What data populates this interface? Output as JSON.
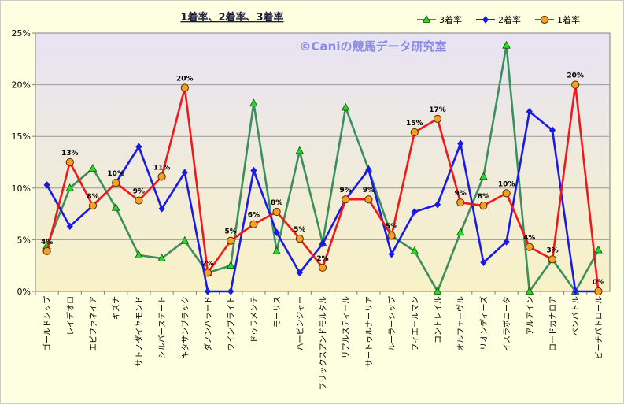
{
  "chart_data": {
    "type": "line",
    "title": "1着率、2着率、3着率",
    "watermark": "©Caniの競馬データ研究室",
    "ylim": [
      0,
      25
    ],
    "yticks": [
      "0%",
      "5%",
      "10%",
      "15%",
      "20%",
      "25%"
    ],
    "ytick_values": [
      0,
      5,
      10,
      15,
      20,
      25
    ],
    "grid": "horizontal",
    "legend_position": "top-right",
    "categories": [
      "ゴールドシップ",
      "レイデオロ",
      "エピファネイア",
      "キズナ",
      "サトノダイヤモンド",
      "シルバーステート",
      "キタサンブラック",
      "ダノンバラード",
      "ウインブライト",
      "ドゥラメンテ",
      "モーリス",
      "ハービンジャー",
      "ブリックスアンドモルタル",
      "リアルスティール",
      "サートゥルナーリア",
      "ルーラーシップ",
      "フィエールマン",
      "コントレイル",
      "オルフェーヴル",
      "リオンディーズ",
      "イスラボニータ",
      "アルアイン",
      "ロードカナロア",
      "ベンバトル",
      "ビーチパトロール"
    ],
    "series": [
      {
        "name": "3着率",
        "color": "#3a8f5c",
        "marker": "triangle",
        "marker_color": "#22dd22",
        "values": [
          4.4,
          10.0,
          11.9,
          8.1,
          3.5,
          3.2,
          4.9,
          1.8,
          2.5,
          18.2,
          3.9,
          13.6,
          4.7,
          17.8,
          11.8,
          5.4,
          3.9,
          0.0,
          5.7,
          11.1,
          23.8,
          0.0,
          3.1,
          0.0,
          4.0
        ]
      },
      {
        "name": "2着率",
        "color": "#1a1ae6",
        "marker": "diamond",
        "marker_color": "#1a1ae6",
        "values": [
          10.3,
          6.3,
          8.3,
          10.5,
          14.0,
          8.0,
          11.5,
          0.0,
          0.0,
          11.7,
          5.7,
          1.8,
          4.6,
          8.9,
          11.8,
          3.6,
          7.7,
          8.4,
          14.3,
          2.8,
          4.8,
          17.4,
          15.6,
          0.0,
          0.0
        ]
      },
      {
        "name": "1着率",
        "color": "#f01818",
        "marker": "circle",
        "marker_color": "#f5a020",
        "values": [
          3.9,
          12.5,
          8.3,
          10.5,
          8.8,
          11.1,
          19.7,
          1.8,
          4.9,
          6.5,
          7.7,
          5.1,
          2.3,
          8.9,
          8.9,
          5.4,
          15.4,
          16.7,
          8.6,
          8.3,
          9.5,
          4.3,
          3.1,
          20.0,
          0.0
        ]
      }
    ],
    "data_labels_series": "1着率",
    "data_labels": [
      "4%",
      "13%",
      "8%",
      "10%",
      "9%",
      "11%",
      "20%",
      "2%",
      "5%",
      "6%",
      "8%",
      "5%",
      "2%",
      "9%",
      "9%",
      "5%",
      "15%",
      "17%",
      "9%",
      "8%",
      "10%",
      "4%",
      "3%",
      "20%",
      "0%"
    ]
  }
}
